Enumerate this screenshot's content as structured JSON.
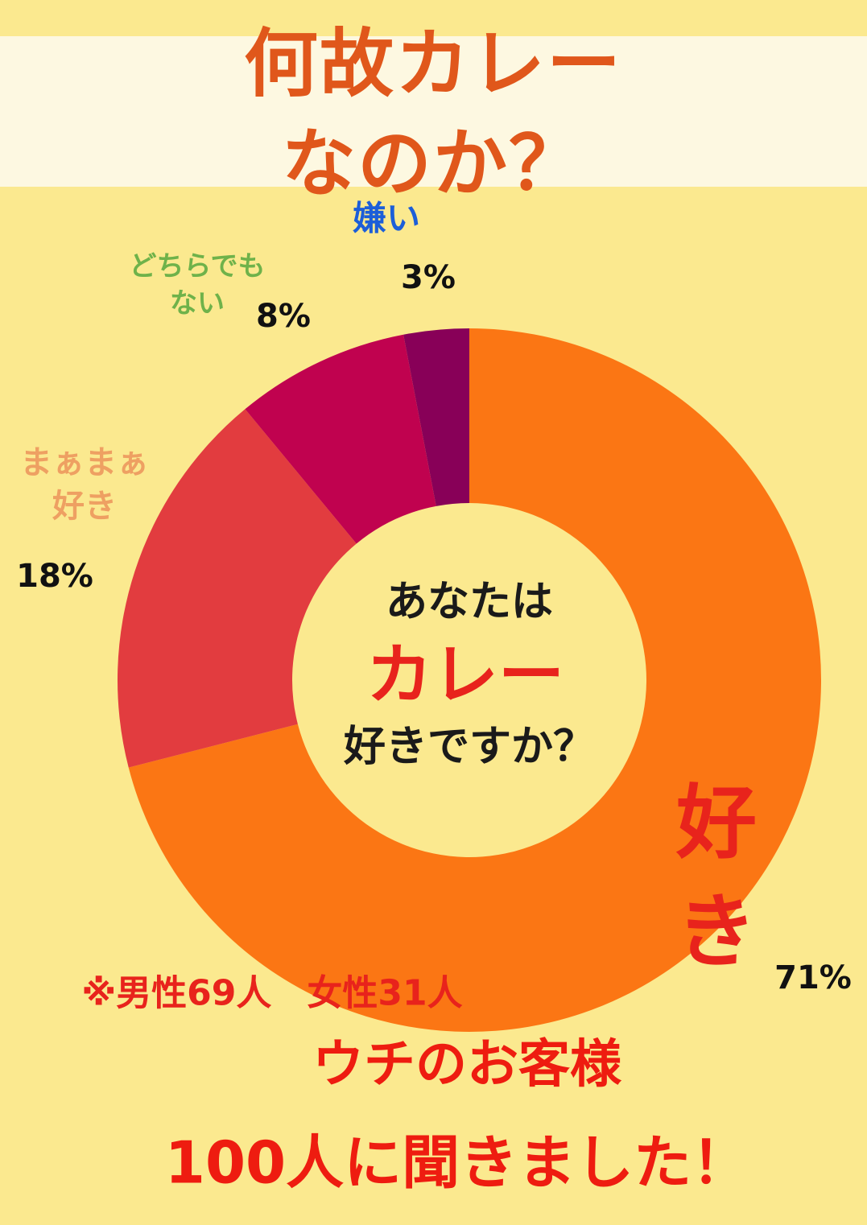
{
  "title": "何故カレーなのか？",
  "chart_data": {
    "type": "donut",
    "categories": [
      "好き",
      "まぁまぁ\n好き",
      "どちらでも\nない",
      "嫌い"
    ],
    "values": [
      71,
      18,
      8,
      3
    ],
    "value_labels": [
      "71%",
      "18%",
      "8%",
      "3%"
    ],
    "colors": [
      "#fb7614",
      "#e23c3f",
      "#c0024f",
      "#880058"
    ],
    "label_colors": [
      "#e8231c",
      "#eea062",
      "#6fb24a",
      "#1c5ed8"
    ],
    "center_text": [
      "あなたは",
      "カレー",
      "好きですか？"
    ]
  },
  "note": "※男性69人　女性31人",
  "footer": [
    "ウチのお客様",
    "100人に聞きました！"
  ]
}
